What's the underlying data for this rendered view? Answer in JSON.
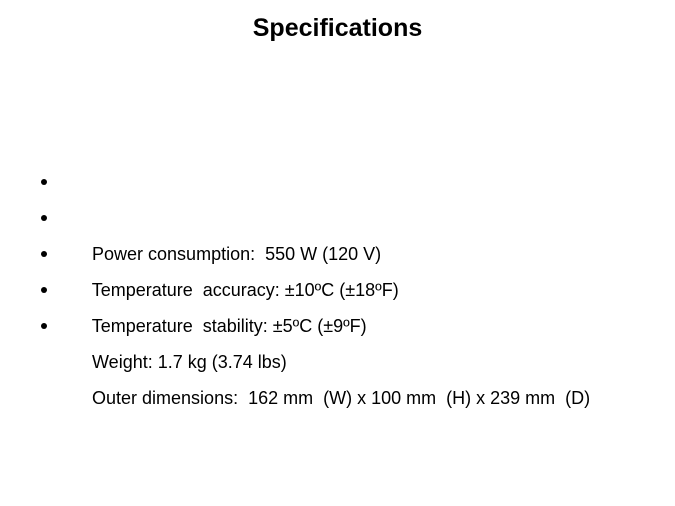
{
  "slide": {
    "title": "Specifications",
    "bullets": [
      "Power consumption:  550 W (120 V)",
      "Temperature  accuracy: ±10ºC (±18ºF)",
      "Temperature  stability: ±5ºC (±9ºF)",
      "Weight: 1.7 kg (3.74 lbs)",
      "Outer dimensions:  162 mm  (W) x 100 mm  (H) x 239 mm  (D)"
    ],
    "colors": {
      "background": "#ffffff",
      "text": "#000000"
    }
  }
}
